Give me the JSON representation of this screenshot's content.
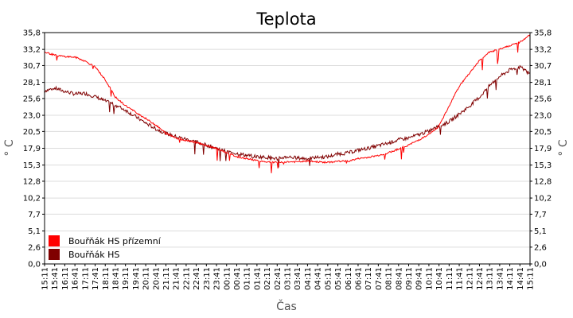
{
  "chart_data": {
    "type": "line",
    "title": "Teplota",
    "xlabel": "Čas",
    "ylabel": "° C",
    "ylim": [
      0,
      35.8
    ],
    "yticks": [
      "0,0",
      "2,6",
      "5,1",
      "7,7",
      "10,2",
      "12,8",
      "15,3",
      "17,9",
      "20,5",
      "23,0",
      "25,6",
      "28,1",
      "30,7",
      "33,2",
      "35,8"
    ],
    "ytick_values": [
      0,
      2.6,
      5.1,
      7.7,
      10.2,
      12.8,
      15.3,
      17.9,
      20.5,
      23.0,
      25.6,
      28.1,
      30.7,
      33.2,
      35.8
    ],
    "categories": [
      "15:11",
      "15:41",
      "16:11",
      "16:41",
      "17:11",
      "17:41",
      "18:11",
      "18:41",
      "19:11",
      "19:41",
      "20:11",
      "20:41",
      "21:11",
      "21:41",
      "22:11",
      "22:41",
      "23:11",
      "23:41",
      "00:11",
      "00:41",
      "01:11",
      "01:41",
      "02:11",
      "02:41",
      "03:11",
      "03:41",
      "04:11",
      "04:41",
      "05:11",
      "05:41",
      "06:11",
      "06:41",
      "07:11",
      "07:41",
      "08:11",
      "08:41",
      "09:11",
      "09:41",
      "10:11",
      "10:41",
      "11:11",
      "11:41",
      "12:11",
      "12:41",
      "13:11",
      "13:41",
      "14:11",
      "14:41",
      "15:11"
    ],
    "grid": true,
    "legend_position": "bottom-left",
    "series": [
      {
        "name": "Bouřňák HS přízemní",
        "color": "#ff0000",
        "values": [
          32.8,
          32.3,
          32.1,
          32.0,
          31.4,
          30.5,
          28.5,
          25.8,
          24.5,
          23.5,
          22.5,
          21.5,
          20.2,
          19.5,
          19.1,
          18.8,
          18.3,
          17.9,
          17.2,
          16.6,
          16.3,
          16.0,
          15.8,
          15.7,
          15.8,
          15.8,
          15.9,
          15.8,
          15.7,
          15.9,
          15.9,
          16.3,
          16.5,
          16.8,
          17.2,
          17.8,
          18.4,
          19.2,
          20.0,
          21.3,
          24.5,
          27.5,
          29.5,
          31.5,
          32.8,
          33.2,
          33.8,
          34.3,
          35.5
        ]
      },
      {
        "name": "Bouřňák HS",
        "color": "#800000",
        "values": [
          26.8,
          27.2,
          26.7,
          26.3,
          26.4,
          25.9,
          25.2,
          24.6,
          23.8,
          22.8,
          21.8,
          20.9,
          20.2,
          19.7,
          19.3,
          18.9,
          18.4,
          17.9,
          17.4,
          17.1,
          16.8,
          16.6,
          16.5,
          16.3,
          16.6,
          16.4,
          16.3,
          16.5,
          16.6,
          17.0,
          17.2,
          17.6,
          17.9,
          18.3,
          18.7,
          19.2,
          19.5,
          20.0,
          20.6,
          21.3,
          22.0,
          23.2,
          24.4,
          25.8,
          27.6,
          29.0,
          30.0,
          30.5,
          29.5
        ]
      }
    ]
  }
}
